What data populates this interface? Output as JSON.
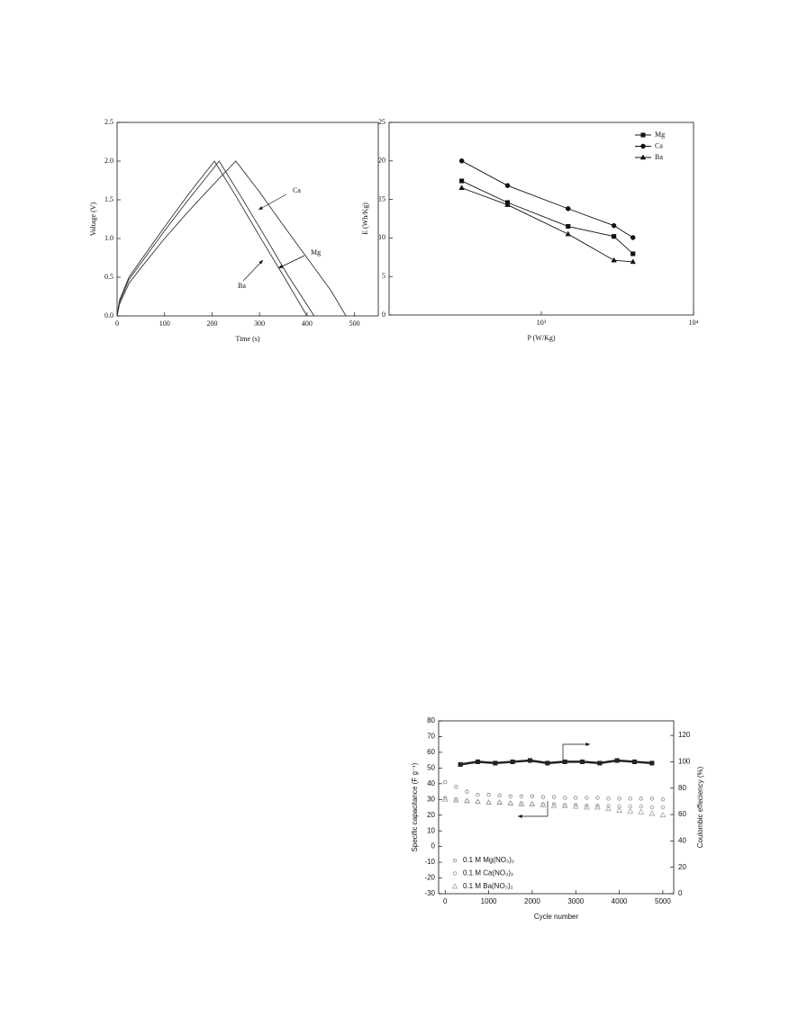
{
  "chart_data": [
    {
      "type": "line",
      "xlabel": "Time (s)",
      "ylabel": "Voltage (V)",
      "xlim": [
        0,
        550
      ],
      "xticks": [
        0,
        100,
        200,
        300,
        400,
        500
      ],
      "ylim": [
        0,
        2.5
      ],
      "yticks": [
        {
          "value": 0,
          "label": "0.0"
        },
        0.5,
        {
          "value": 1,
          "label": "1.0"
        },
        1.5,
        {
          "value": 2,
          "label": "2.0"
        },
        2.5
      ],
      "series": [
        {
          "name": "Ca",
          "color": "#333333",
          "x": [
            0,
            5,
            25,
            50,
            100,
            150,
            200,
            250,
            300,
            350,
            400,
            450,
            482
          ],
          "values": [
            0,
            0.15,
            0.42,
            0.62,
            1.0,
            1.35,
            1.68,
            2.0,
            1.6,
            1.17,
            0.75,
            0.33,
            0
          ]
        },
        {
          "name": "Mg",
          "color": "#333333",
          "x": [
            0,
            5,
            25,
            50,
            100,
            150,
            215,
            260,
            310,
            360,
            415
          ],
          "values": [
            0,
            0.18,
            0.47,
            0.68,
            1.1,
            1.5,
            2.0,
            1.55,
            1.04,
            0.52,
            0
          ]
        },
        {
          "name": "Ba",
          "color": "#333333",
          "x": [
            0,
            5,
            25,
            50,
            100,
            150,
            205,
            250,
            300,
            350,
            400
          ],
          "values": [
            0,
            0.2,
            0.5,
            0.72,
            1.15,
            1.57,
            2.0,
            1.55,
            1.03,
            0.52,
            0
          ]
        }
      ]
    },
    {
      "type": "line",
      "xlabel": "P (W/Kg)",
      "ylabel": "E (Wh/Kg)",
      "xscale": "log",
      "xlim": [
        100,
        10000
      ],
      "xticks": [
        {
          "value": 1000,
          "label": "10³"
        },
        {
          "value": 10000,
          "label": "10⁴"
        }
      ],
      "ylim": [
        0,
        25
      ],
      "yticks": [
        0,
        5,
        10,
        15,
        20,
        25
      ],
      "legend": "upper right",
      "series": [
        {
          "name": "Mg",
          "color": "#111111",
          "marker": "square",
          "x": [
            300,
            600,
            1500,
            3000,
            4000
          ],
          "values": [
            17.4,
            14.6,
            11.5,
            10.2,
            7.95
          ]
        },
        {
          "name": "Ca",
          "color": "#111111",
          "marker": "circle",
          "x": [
            300,
            600,
            1500,
            3000,
            4000
          ],
          "values": [
            20,
            16.8,
            13.8,
            11.6,
            10.05
          ]
        },
        {
          "name": "Ba",
          "color": "#111111",
          "marker": "triangle",
          "x": [
            300,
            600,
            1500,
            3000,
            4000
          ],
          "values": [
            16.5,
            14.3,
            10.5,
            7.1,
            6.9
          ]
        }
      ]
    },
    {
      "type": "scatter",
      "xlabel": "Cycle number",
      "ylabel": "Specific capacitance (F g⁻¹)",
      "y2label": "Coulombic effeciency (%)",
      "xlim": [
        -150,
        5250
      ],
      "xticks": [
        0,
        1000,
        2000,
        3000,
        4000,
        5000
      ],
      "ylim": [
        -30,
        80
      ],
      "yticks": [
        -30,
        -20,
        -10,
        0,
        10,
        20,
        30,
        40,
        50,
        60,
        70,
        80
      ],
      "y2lim": [
        0,
        131
      ],
      "y2ticks": [
        0,
        20,
        40,
        60,
        80,
        100,
        120
      ],
      "legend": "lower left",
      "series": [
        {
          "name": "0.1 M Mg(NO₃)₂",
          "color": "#777777",
          "marker": "circle",
          "x": [
            0,
            250,
            500,
            750,
            1000,
            1250,
            1500,
            1750,
            2000,
            2250,
            2500,
            2750,
            3000,
            3250,
            3500,
            3750,
            4000,
            4250,
            4500,
            4750,
            5000
          ],
          "values": [
            41,
            38,
            35,
            33,
            33,
            32.5,
            32,
            32,
            32,
            31.5,
            31.5,
            31,
            31,
            31,
            31,
            30.5,
            30.5,
            30.5,
            30.5,
            30.5,
            30
          ]
        },
        {
          "name": "0.1 M Ca(NO₃)₂",
          "color": "#888888",
          "marker": "circle",
          "x": [
            0,
            250,
            500,
            750,
            1000,
            1250,
            1500,
            1750,
            2000,
            2250,
            2500,
            2750,
            3000,
            3250,
            3500,
            3750,
            4000,
            4250,
            4500,
            4750,
            5000
          ],
          "values": [
            31,
            30,
            29,
            28.5,
            28,
            28,
            27.5,
            27.5,
            27,
            27,
            27,
            26.5,
            26.5,
            26,
            26,
            26,
            25.5,
            25.5,
            25.5,
            25,
            25
          ]
        },
        {
          "name": "0.1 M Ba(NO₃)₂",
          "color": "#999999",
          "marker": "triangle",
          "x": [
            0,
            250,
            500,
            750,
            1000,
            1250,
            1500,
            1750,
            2000,
            2250,
            2500,
            2750,
            3000,
            3250,
            3500,
            3750,
            4000,
            4250,
            4500,
            4750,
            5000
          ],
          "values": [
            30,
            29.5,
            29,
            28.5,
            28,
            28,
            27.5,
            27,
            27,
            26.5,
            26,
            26,
            25.5,
            25,
            25,
            24,
            23,
            22.5,
            22,
            21,
            20
          ]
        },
        {
          "color": "#222222",
          "marker": "square",
          "axis": "y2",
          "x": [
            350,
            750,
            1150,
            1550,
            1950,
            2350,
            2750,
            3150,
            3550,
            3950,
            4350,
            4750
          ],
          "values": [
            98,
            100,
            99,
            100,
            101,
            99,
            100,
            100,
            99,
            101,
            100,
            99
          ]
        }
      ]
    }
  ]
}
